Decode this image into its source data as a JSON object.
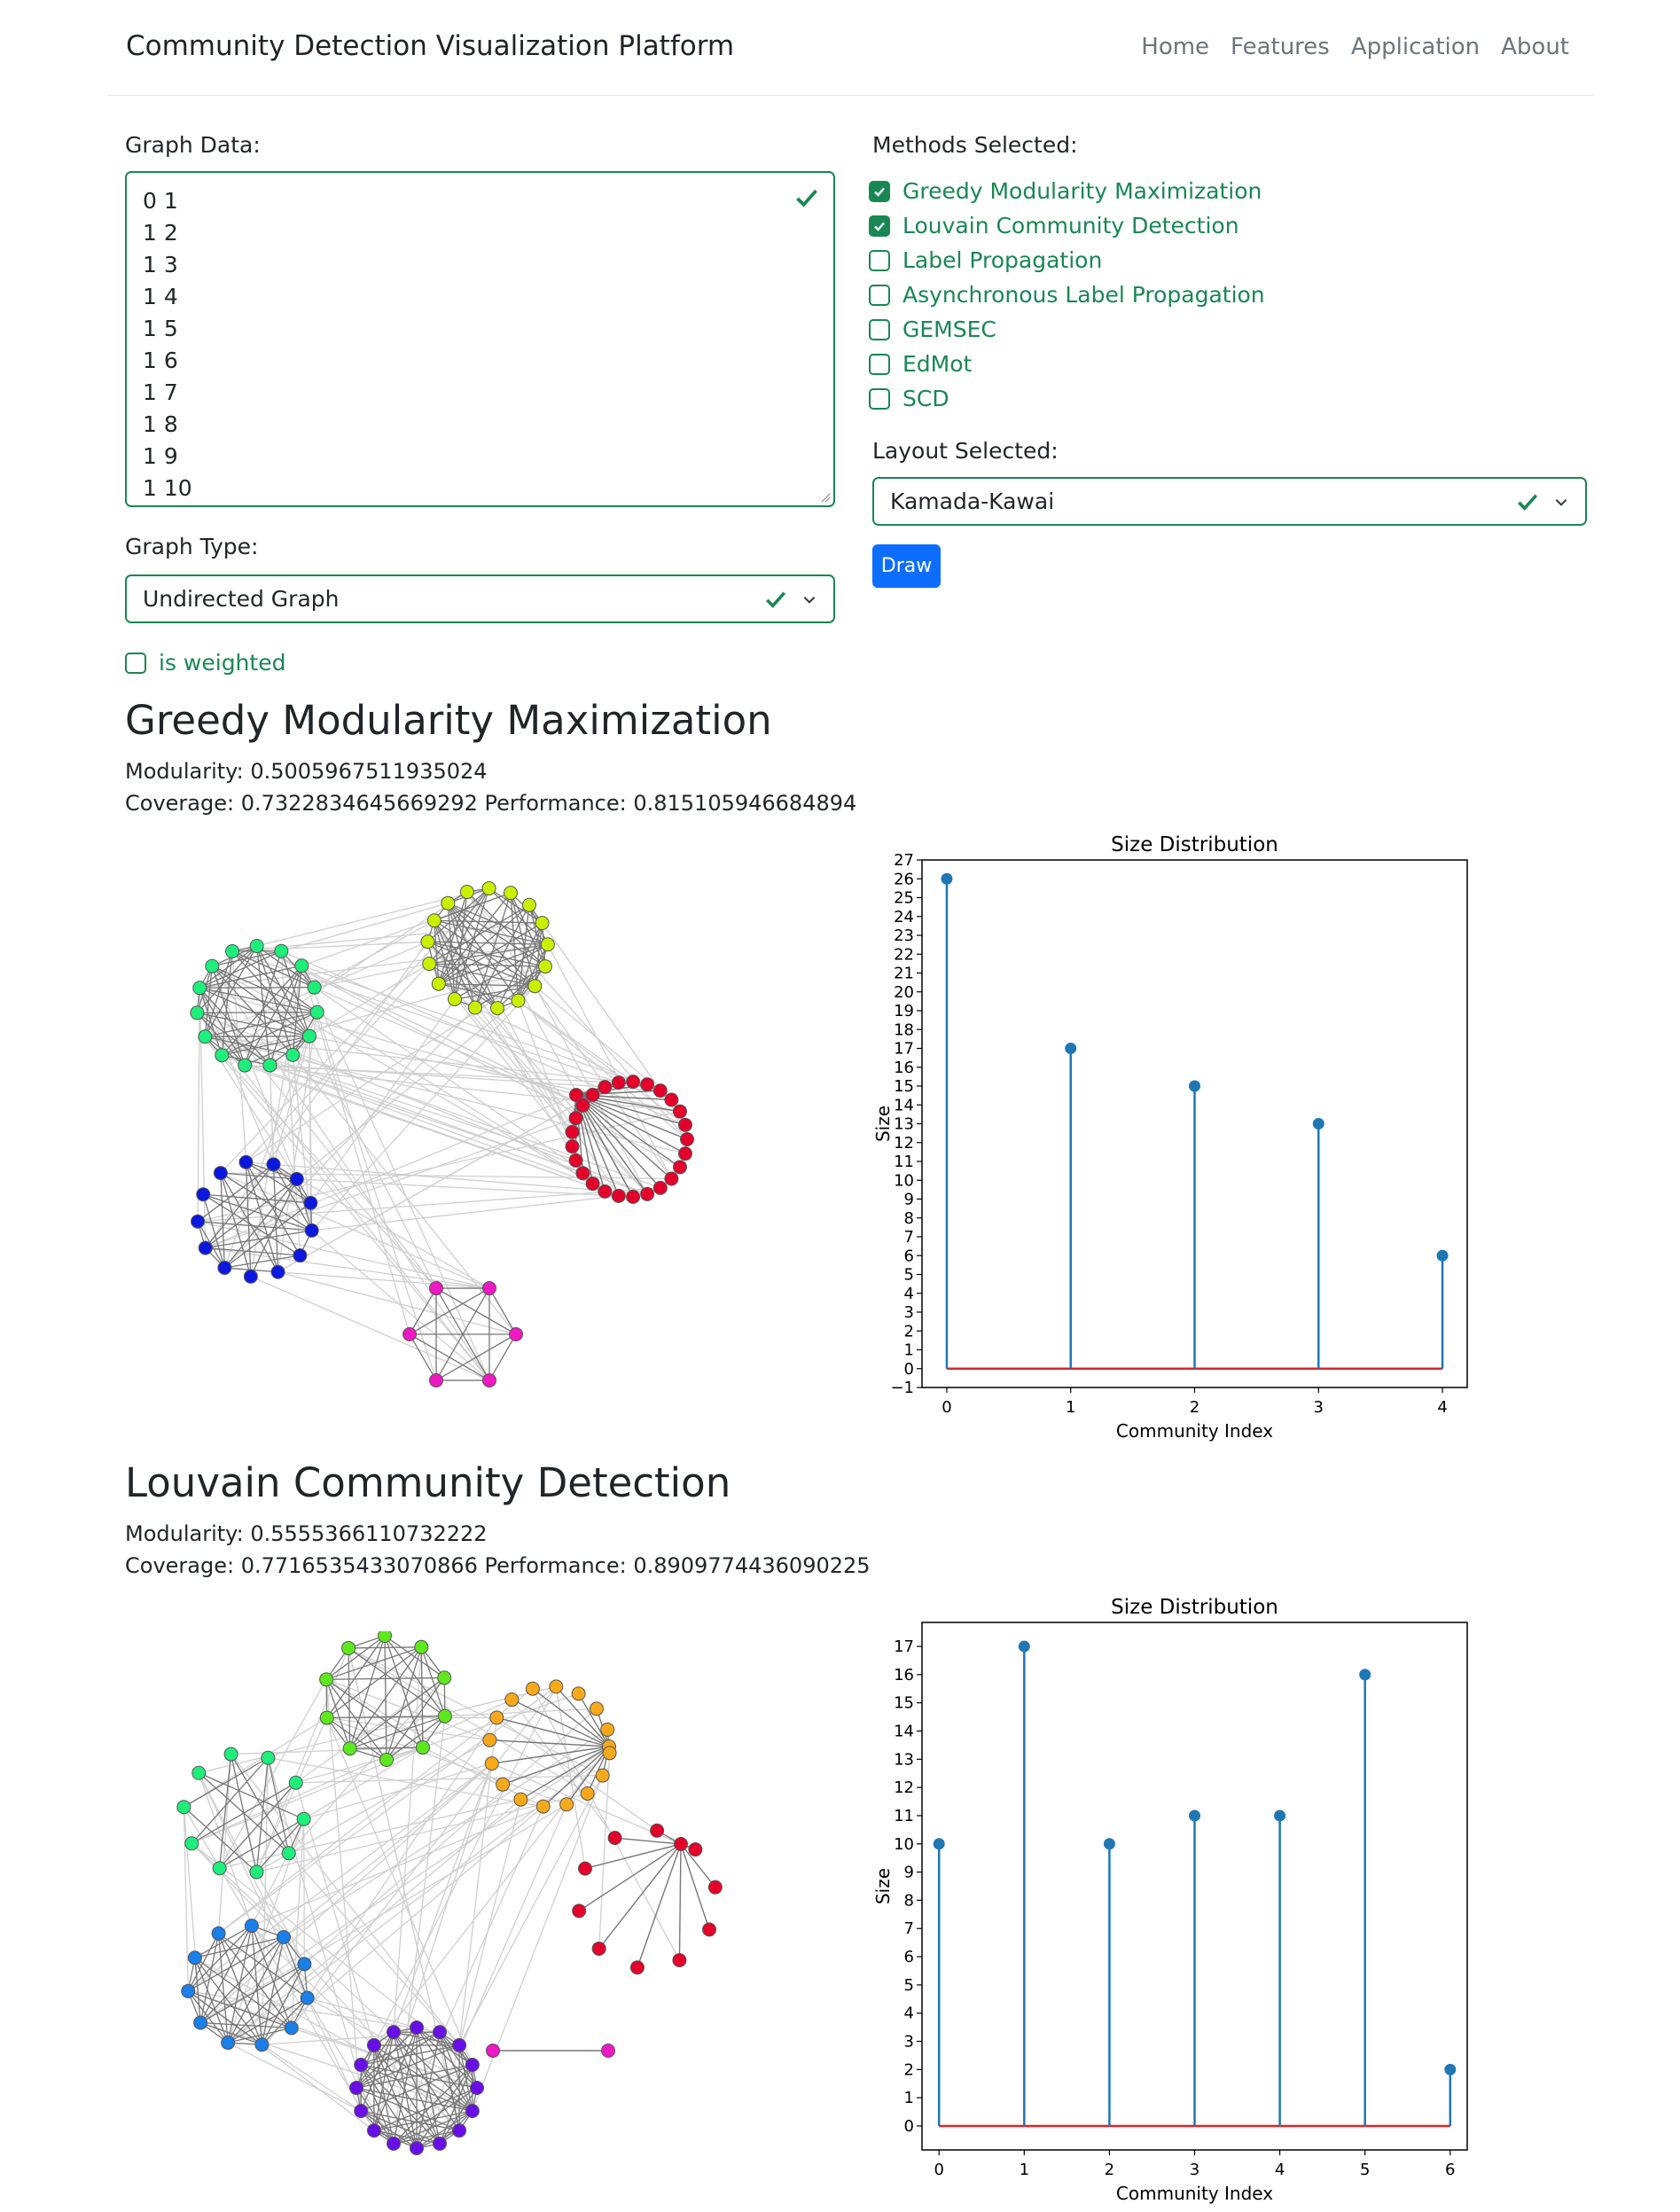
{
  "navbar": {
    "brand": "Community Detection Visualization Platform",
    "links": [
      "Home",
      "Features",
      "Application",
      "About"
    ]
  },
  "form": {
    "graph_data_label": "Graph Data:",
    "graph_data_lines": [
      "0 1",
      "1 2",
      "1 3",
      "1 4",
      "1 5",
      "1 6",
      "1 7",
      "1 8",
      "1 9",
      "1 10"
    ],
    "graph_type_label": "Graph Type:",
    "graph_type_value": "Undirected Graph",
    "weighted_label": "is weighted",
    "weighted_checked": false,
    "methods_label": "Methods Selected:",
    "methods": [
      {
        "label": "Greedy Modularity Maximization",
        "checked": true
      },
      {
        "label": "Louvain Community Detection",
        "checked": true
      },
      {
        "label": "Label Propagation",
        "checked": false
      },
      {
        "label": "Asynchronous Label Propagation",
        "checked": false
      },
      {
        "label": "GEMSEC",
        "checked": false
      },
      {
        "label": "EdMot",
        "checked": false
      },
      {
        "label": "SCD",
        "checked": false
      }
    ],
    "layout_label": "Layout Selected:",
    "layout_value": "Kamada-Kawai",
    "draw_label": "Draw",
    "valid_color": "#198754",
    "accent_color": "#0d6efd"
  },
  "results": [
    {
      "title": "Greedy Modularity Maximization",
      "modularity": "Modularity: 0.5005967511935024",
      "coverage_performance": "Coverage: 0.7322834645669292 Performance: 0.815105946684894",
      "community_colors": [
        "#c8f000",
        "#1eee7a",
        "#e4002b",
        "#0a18e0",
        "#ee18c4"
      ]
    },
    {
      "title": "Louvain Community Detection",
      "modularity": "Modularity: 0.5555366110732222",
      "coverage_performance": "Coverage: 0.7716535433070866 Performance: 0.8909774436090225",
      "community_colors": [
        "#5ee81e",
        "#f7a81b",
        "#1eee7a",
        "#e4002b",
        "#1a7fe8",
        "#6a0ee8",
        "#ee18c4"
      ]
    }
  ],
  "chart_data": [
    {
      "type": "stem",
      "title": "Size Distribution",
      "xlabel": "Community Index",
      "ylabel": "Size",
      "x": [
        0,
        1,
        2,
        3,
        4
      ],
      "values": [
        26,
        17,
        15,
        13,
        6
      ],
      "ylim": [
        -1,
        27
      ],
      "yticks": [
        -1,
        0,
        1,
        2,
        3,
        4,
        5,
        6,
        7,
        8,
        9,
        10,
        11,
        12,
        13,
        14,
        15,
        16,
        17,
        18,
        19,
        20,
        21,
        22,
        23,
        24,
        25,
        26,
        27
      ],
      "stem_color": "#1f77b4",
      "baseline_color": "#d62728"
    },
    {
      "type": "stem",
      "title": "Size Distribution",
      "xlabel": "Community Index",
      "ylabel": "Size",
      "x": [
        0,
        1,
        2,
        3,
        4,
        5,
        6
      ],
      "values": [
        10,
        17,
        10,
        11,
        11,
        16,
        2
      ],
      "ylim": [
        -0.85,
        17.85
      ],
      "yticks": [
        0,
        1,
        2,
        3,
        4,
        5,
        6,
        7,
        8,
        9,
        10,
        11,
        12,
        13,
        14,
        15,
        16,
        17
      ],
      "stem_color": "#1f77b4",
      "baseline_color": "#d62728"
    }
  ]
}
